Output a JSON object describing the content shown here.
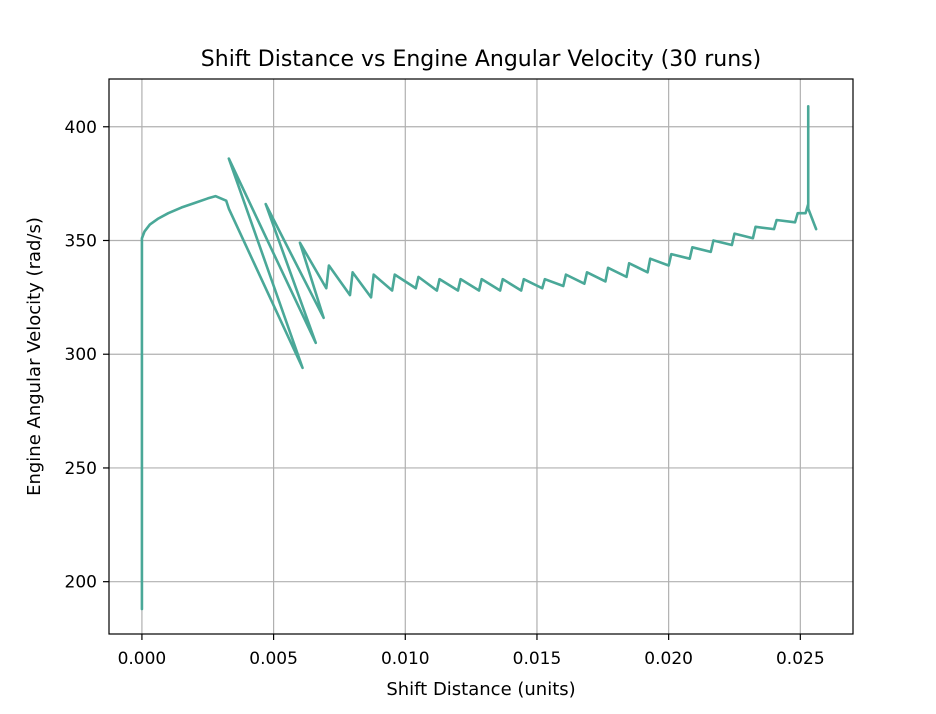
{
  "chart_data": {
    "type": "line",
    "title": "Shift Distance vs Engine Angular Velocity (30 runs)",
    "xlabel": "Shift Distance (units)",
    "ylabel": "Engine Angular Velocity (rad/s)",
    "xlim": [
      -0.00125,
      0.027
    ],
    "ylim": [
      177,
      421
    ],
    "xticks": [
      0.0,
      0.005,
      0.01,
      0.015,
      0.02,
      0.025
    ],
    "xtick_labels": [
      "0.000",
      "0.005",
      "0.010",
      "0.015",
      "0.020",
      "0.025"
    ],
    "yticks": [
      200,
      250,
      300,
      350,
      400
    ],
    "ytick_labels": [
      "200",
      "250",
      "300",
      "350",
      "400"
    ],
    "grid": true,
    "line_color": "#4aa898",
    "series": [
      {
        "points": [
          [
            0.0,
            188
          ],
          [
            0.0,
            300
          ],
          [
            0.0,
            351
          ],
          [
            0.0001,
            354
          ],
          [
            0.0003,
            357
          ],
          [
            0.0006,
            359.5
          ],
          [
            0.001,
            362
          ],
          [
            0.0015,
            364.5
          ],
          [
            0.002,
            366.5
          ],
          [
            0.0025,
            368.5
          ],
          [
            0.0028,
            369.5
          ],
          [
            0.0032,
            367.5
          ],
          [
            0.0033,
            364
          ],
          [
            0.0061,
            294
          ],
          [
            0.0033,
            386
          ],
          [
            0.0066,
            305
          ],
          [
            0.0047,
            366
          ],
          [
            0.0069,
            316
          ],
          [
            0.006,
            349
          ],
          [
            0.007,
            329
          ],
          [
            0.0071,
            339
          ],
          [
            0.0079,
            326
          ],
          [
            0.008,
            336
          ],
          [
            0.0087,
            325
          ],
          [
            0.0088,
            335
          ],
          [
            0.0095,
            328
          ],
          [
            0.0096,
            335
          ],
          [
            0.0104,
            329
          ],
          [
            0.0105,
            334
          ],
          [
            0.0112,
            328
          ],
          [
            0.0113,
            333
          ],
          [
            0.012,
            328
          ],
          [
            0.0121,
            333
          ],
          [
            0.0128,
            328
          ],
          [
            0.0129,
            333
          ],
          [
            0.0136,
            328
          ],
          [
            0.0137,
            333
          ],
          [
            0.0144,
            328
          ],
          [
            0.0145,
            333
          ],
          [
            0.0152,
            329
          ],
          [
            0.0153,
            333
          ],
          [
            0.016,
            330
          ],
          [
            0.0161,
            335
          ],
          [
            0.0168,
            331
          ],
          [
            0.0169,
            336
          ],
          [
            0.0176,
            332
          ],
          [
            0.0177,
            338
          ],
          [
            0.0184,
            334
          ],
          [
            0.0185,
            340
          ],
          [
            0.0192,
            336
          ],
          [
            0.0193,
            342
          ],
          [
            0.02,
            339
          ],
          [
            0.0201,
            344
          ],
          [
            0.0208,
            342
          ],
          [
            0.0209,
            347
          ],
          [
            0.0216,
            345
          ],
          [
            0.0217,
            350
          ],
          [
            0.0224,
            348
          ],
          [
            0.0225,
            353
          ],
          [
            0.0232,
            351
          ],
          [
            0.0233,
            356
          ],
          [
            0.024,
            355
          ],
          [
            0.0241,
            359
          ],
          [
            0.0248,
            358
          ],
          [
            0.0249,
            362
          ],
          [
            0.0252,
            362
          ],
          [
            0.0253,
            366
          ],
          [
            0.0253,
            409
          ],
          [
            0.0253,
            364
          ],
          [
            0.0256,
            355
          ]
        ]
      }
    ]
  }
}
